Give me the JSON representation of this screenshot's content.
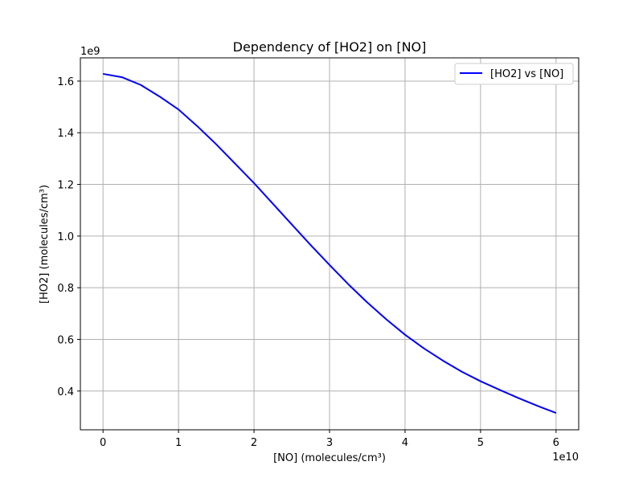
{
  "chart_data": {
    "type": "line",
    "title": "Dependency of [HO2] on [NO]",
    "xlabel": "[NO] (molecules/cm³)",
    "ylabel": "[HO2] (molecules/cm³)",
    "x_multiplier_label": "1e10",
    "y_multiplier_label": "1e9",
    "xlim": [
      -3000000000.0,
      63000000000.0
    ],
    "ylim": [
      250000000.0,
      1690000000.0
    ],
    "x_ticks": [
      0,
      10000000000.0,
      20000000000.0,
      30000000000.0,
      40000000000.0,
      50000000000.0,
      60000000000.0
    ],
    "x_tick_labels": [
      "0",
      "1",
      "2",
      "3",
      "4",
      "5",
      "6"
    ],
    "y_ticks": [
      400000000.0,
      600000000.0,
      800000000.0,
      1000000000.0,
      1200000000.0,
      1400000000.0,
      1600000000.0
    ],
    "y_tick_labels": [
      "0.4",
      "0.6",
      "0.8",
      "1.0",
      "1.2",
      "1.4",
      "1.6"
    ],
    "grid": true,
    "legend_position": "top-right",
    "series": [
      {
        "name": "[HO2] vs [NO]",
        "color": "#0000ff",
        "x": [
          0,
          2500000000.0,
          5000000000.0,
          7500000000.0,
          10000000000.0,
          12500000000.0,
          15000000000.0,
          17500000000.0,
          20000000000.0,
          22500000000.0,
          25000000000.0,
          27500000000.0,
          30000000000.0,
          32500000000.0,
          35000000000.0,
          37500000000.0,
          40000000000.0,
          42500000000.0,
          45000000000.0,
          47500000000.0,
          50000000000.0,
          52500000000.0,
          55000000000.0,
          57500000000.0,
          60000000000.0
        ],
        "y": [
          1628000000.0,
          1615000000.0,
          1585000000.0,
          1540000000.0,
          1490000000.0,
          1425000000.0,
          1355000000.0,
          1280000000.0,
          1205000000.0,
          1125000000.0,
          1045000000.0,
          965000000.0,
          888000000.0,
          813000000.0,
          743000000.0,
          678000000.0,
          618000000.0,
          565000000.0,
          518000000.0,
          475000000.0,
          438000000.0,
          405000000.0,
          373000000.0,
          343000000.0,
          315000000.0
        ]
      }
    ]
  }
}
